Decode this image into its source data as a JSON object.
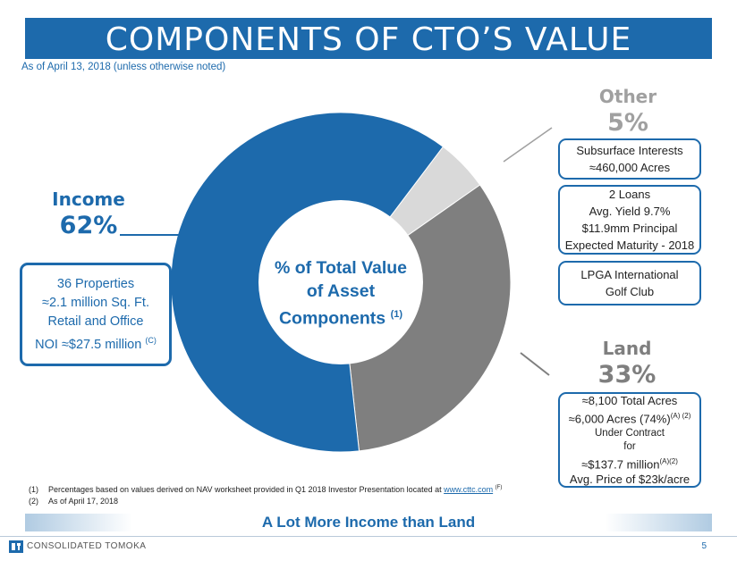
{
  "title": "COMPONENTS OF CTO’S VALUE",
  "subtitle": "As of April 13, 2018 (unless otherwise noted)",
  "chart_data": {
    "type": "pie",
    "categories": [
      "Income",
      "Land",
      "Other"
    ],
    "values": [
      62,
      33,
      5
    ],
    "colors": [
      "#1d6aac",
      "#7f7f7f",
      "#d9d9d9"
    ],
    "center_label": [
      "% of Total Value",
      "of Asset",
      "Components"
    ],
    "center_label_note": "(1)"
  },
  "income": {
    "name": "Income",
    "percent": "62%",
    "details": [
      "36 Properties",
      "≈2.1 million Sq. Ft.",
      "Retail and Office",
      "NOI ≈$27.5 million"
    ],
    "details_note": "(C)"
  },
  "other": {
    "name": "Other",
    "percent": "5%",
    "boxes": [
      [
        "Subsurface Interests",
        "≈460,000 Acres"
      ],
      [
        "2 Loans",
        "Avg. Yield 9.7%",
        "$11.9mm Principal",
        "Expected Maturity - 2018"
      ],
      [
        "LPGA International",
        "Golf Club"
      ]
    ]
  },
  "land": {
    "name": "Land",
    "percent": "33%",
    "line1": "≈8,100 Total Acres",
    "line2": "≈6,000 Acres (74%)",
    "line2_note": "(A) (2)",
    "line3": "Under Contract",
    "line4": "for",
    "line5": "≈$137.7 million",
    "line5_note": "(A)(2)",
    "line6": "Avg. Price of $23k/acre"
  },
  "footnotes": {
    "n1_num": "(1)",
    "n1_text": "Percentages based on values derived on NAV worksheet provided in Q1 2018 Investor Presentation located at",
    "n1_link": "www.cttc.com",
    "n1_note": "(F)",
    "n2_num": "(2)",
    "n2_text": "As of April 17, 2018"
  },
  "tagline": "A Lot More Income than Land",
  "company": "CONSOLIDATED TOMOKA",
  "page_number": "5"
}
